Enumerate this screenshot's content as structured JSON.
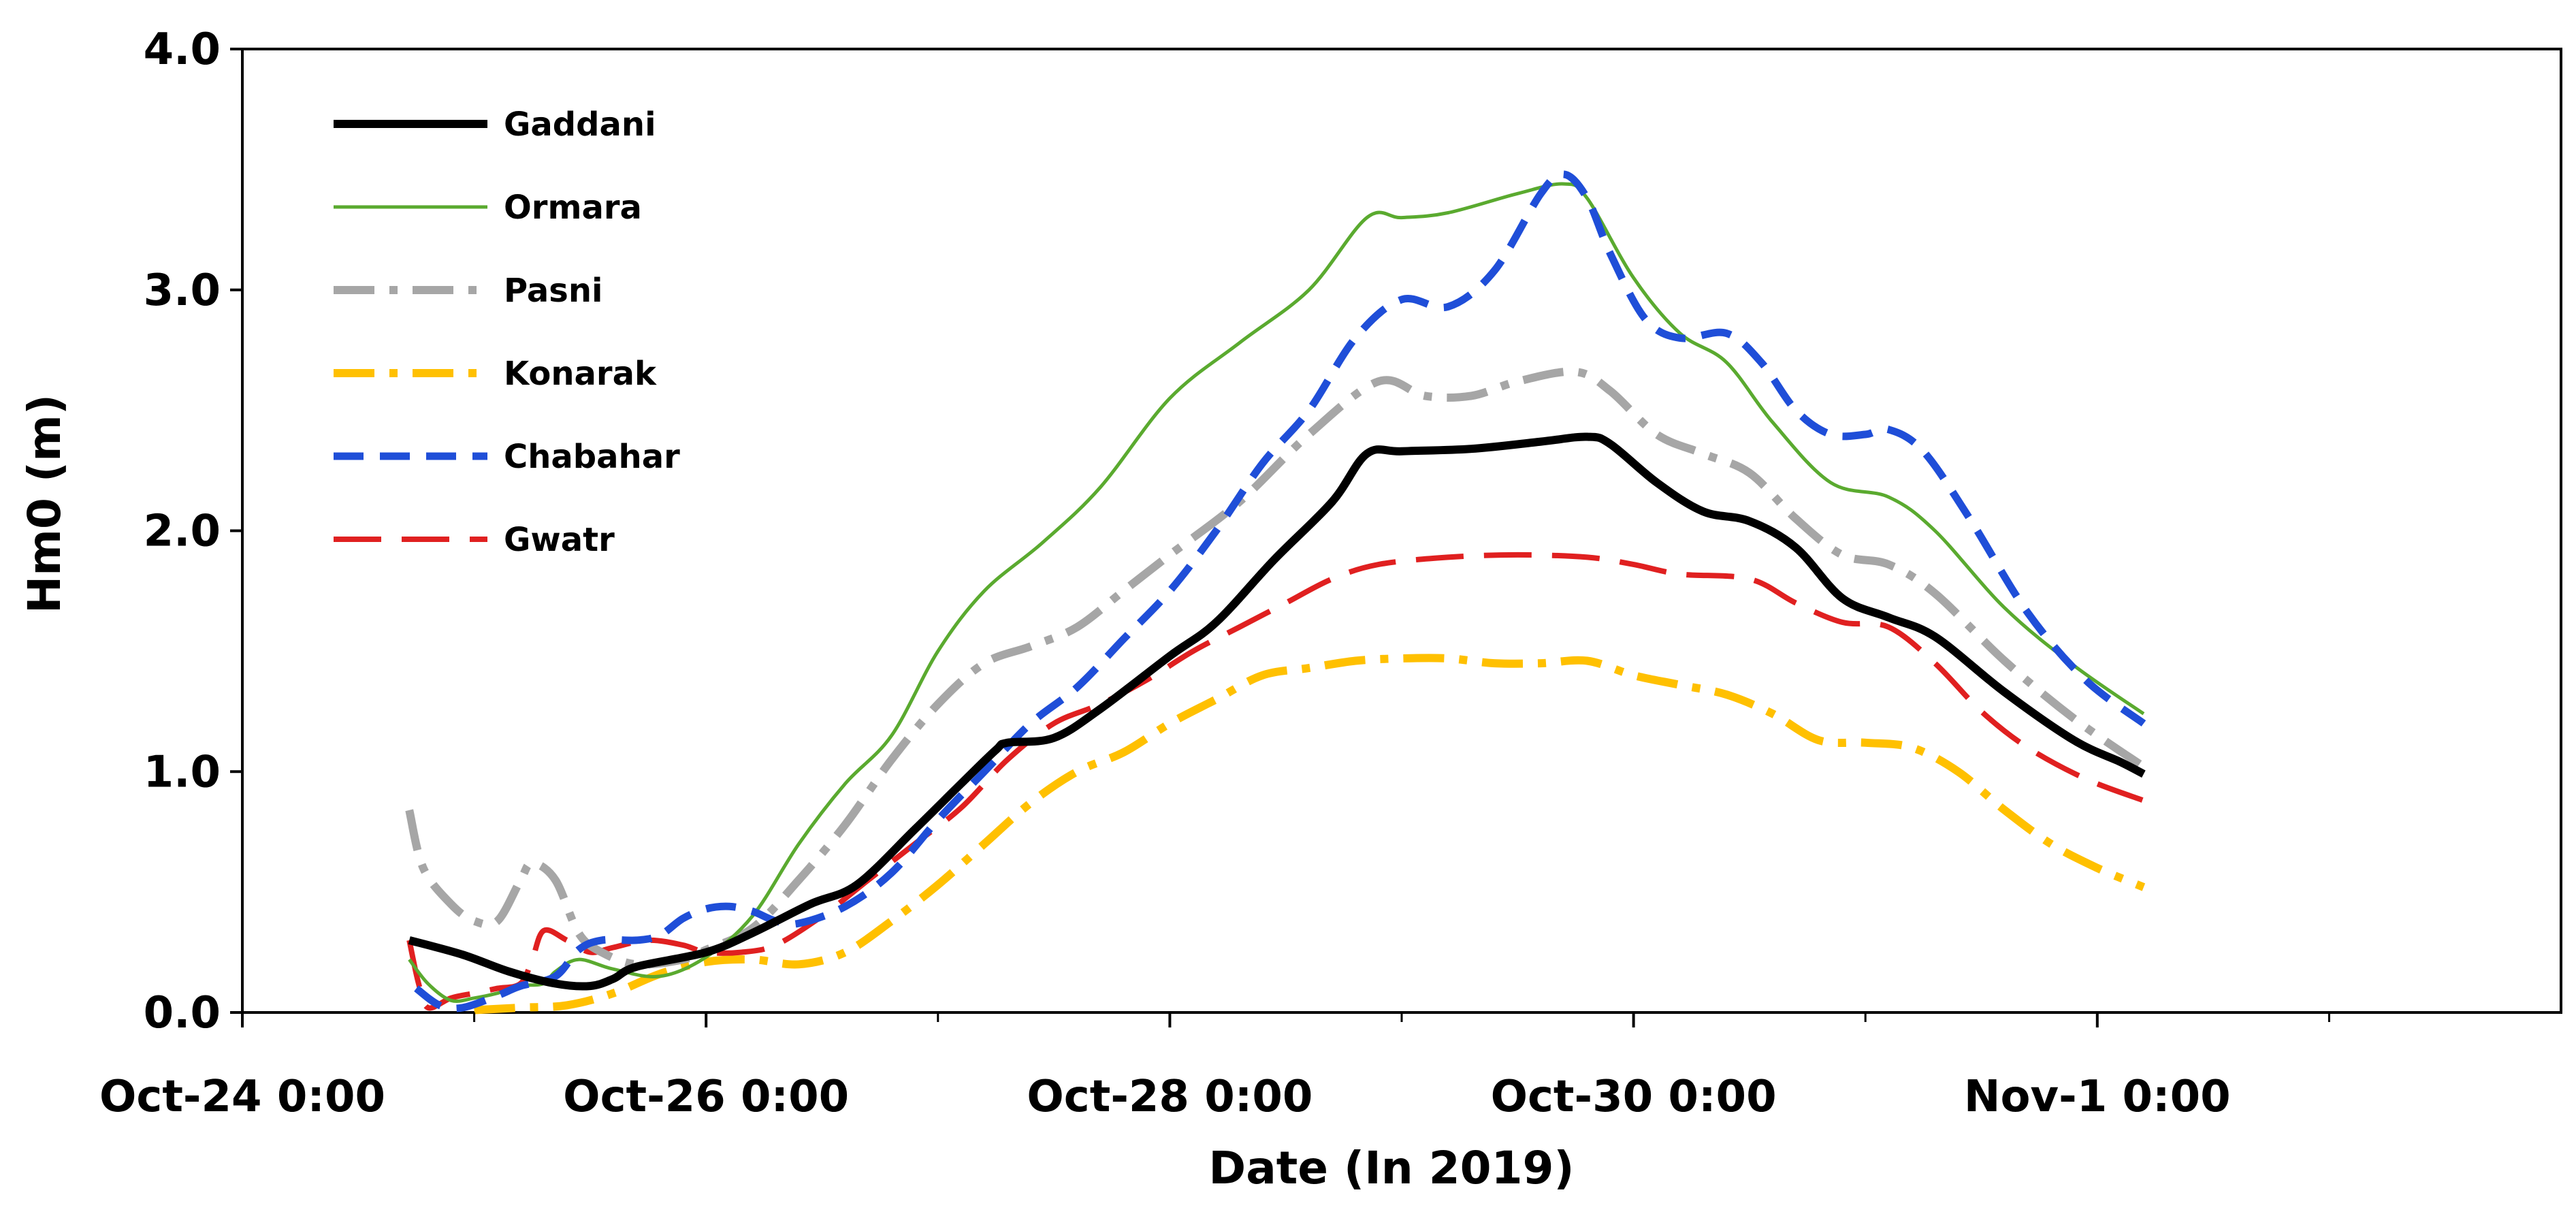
{
  "chart_data": {
    "type": "line",
    "title": "",
    "xlabel": "Date (In 2019)",
    "ylabel": "Hm0 (m)",
    "xlim": [
      0,
      10
    ],
    "ylim": [
      0,
      4
    ],
    "x_unit": "days since Oct-24 0:00",
    "x_ticks": [
      {
        "value": 0,
        "label": "Oct-24 0:00"
      },
      {
        "value": 2,
        "label": "Oct-26 0:00"
      },
      {
        "value": 4,
        "label": "Oct-28 0:00"
      },
      {
        "value": 6,
        "label": "Oct-30 0:00"
      },
      {
        "value": 8,
        "label": "Nov-1 0:00"
      }
    ],
    "y_ticks": [
      {
        "value": 0,
        "label": "0.0"
      },
      {
        "value": 1,
        "label": "1.0"
      },
      {
        "value": 2,
        "label": "2.0"
      },
      {
        "value": 3,
        "label": "3.0"
      },
      {
        "value": 4,
        "label": "4.0"
      }
    ],
    "grid": false,
    "legend_position": "top-left",
    "series": [
      {
        "name": "Gaddani",
        "color": "#000000",
        "style": "solid-thick",
        "points": [
          [
            0.72,
            0.3
          ],
          [
            0.95,
            0.24
          ],
          [
            1.15,
            0.17
          ],
          [
            1.35,
            0.12
          ],
          [
            1.5,
            0.11
          ],
          [
            1.6,
            0.14
          ],
          [
            1.7,
            0.19
          ],
          [
            2.0,
            0.25
          ],
          [
            2.2,
            0.33
          ],
          [
            2.45,
            0.45
          ],
          [
            2.65,
            0.53
          ],
          [
            2.9,
            0.76
          ],
          [
            3.1,
            0.95
          ],
          [
            3.25,
            1.09
          ],
          [
            3.3,
            1.12
          ],
          [
            3.5,
            1.14
          ],
          [
            3.7,
            1.26
          ],
          [
            4.0,
            1.48
          ],
          [
            4.2,
            1.62
          ],
          [
            4.45,
            1.88
          ],
          [
            4.7,
            2.12
          ],
          [
            4.85,
            2.32
          ],
          [
            5.0,
            2.33
          ],
          [
            5.3,
            2.34
          ],
          [
            5.6,
            2.37
          ],
          [
            5.8,
            2.39
          ],
          [
            5.9,
            2.36
          ],
          [
            6.1,
            2.2
          ],
          [
            6.3,
            2.08
          ],
          [
            6.5,
            2.04
          ],
          [
            6.7,
            1.93
          ],
          [
            6.9,
            1.72
          ],
          [
            7.1,
            1.64
          ],
          [
            7.3,
            1.56
          ],
          [
            7.6,
            1.33
          ],
          [
            7.9,
            1.13
          ],
          [
            8.1,
            1.04
          ],
          [
            8.2,
            0.99
          ]
        ]
      },
      {
        "name": "Ormara",
        "color": "#5aaa2f",
        "style": "solid-thin",
        "points": [
          [
            0.72,
            0.22
          ],
          [
            0.8,
            0.12
          ],
          [
            0.9,
            0.05
          ],
          [
            1.0,
            0.06
          ],
          [
            1.1,
            0.08
          ],
          [
            1.2,
            0.11
          ],
          [
            1.3,
            0.12
          ],
          [
            1.35,
            0.17
          ],
          [
            1.45,
            0.22
          ],
          [
            1.6,
            0.18
          ],
          [
            1.8,
            0.15
          ],
          [
            2.0,
            0.23
          ],
          [
            2.2,
            0.4
          ],
          [
            2.4,
            0.7
          ],
          [
            2.6,
            0.95
          ],
          [
            2.8,
            1.15
          ],
          [
            3.0,
            1.5
          ],
          [
            3.2,
            1.75
          ],
          [
            3.45,
            1.95
          ],
          [
            3.7,
            2.18
          ],
          [
            4.0,
            2.55
          ],
          [
            4.3,
            2.78
          ],
          [
            4.6,
            3.0
          ],
          [
            4.85,
            3.3
          ],
          [
            5.0,
            3.3
          ],
          [
            5.2,
            3.32
          ],
          [
            5.5,
            3.4
          ],
          [
            5.7,
            3.44
          ],
          [
            5.8,
            3.38
          ],
          [
            6.0,
            3.05
          ],
          [
            6.2,
            2.82
          ],
          [
            6.4,
            2.7
          ],
          [
            6.6,
            2.45
          ],
          [
            6.85,
            2.2
          ],
          [
            7.1,
            2.14
          ],
          [
            7.3,
            2.0
          ],
          [
            7.6,
            1.68
          ],
          [
            7.9,
            1.44
          ],
          [
            8.2,
            1.24
          ]
        ]
      },
      {
        "name": "Pasni",
        "color": "#a6a6a6",
        "style": "dash-dot",
        "points": [
          [
            0.72,
            0.84
          ],
          [
            0.78,
            0.6
          ],
          [
            0.9,
            0.45
          ],
          [
            1.0,
            0.38
          ],
          [
            1.1,
            0.38
          ],
          [
            1.2,
            0.55
          ],
          [
            1.25,
            0.62
          ],
          [
            1.35,
            0.55
          ],
          [
            1.45,
            0.33
          ],
          [
            1.55,
            0.25
          ],
          [
            1.7,
            0.2
          ],
          [
            1.9,
            0.22
          ],
          [
            2.0,
            0.26
          ],
          [
            2.2,
            0.35
          ],
          [
            2.4,
            0.55
          ],
          [
            2.6,
            0.78
          ],
          [
            2.8,
            1.05
          ],
          [
            3.0,
            1.28
          ],
          [
            3.2,
            1.45
          ],
          [
            3.4,
            1.52
          ],
          [
            3.6,
            1.6
          ],
          [
            3.8,
            1.75
          ],
          [
            4.0,
            1.9
          ],
          [
            4.3,
            2.12
          ],
          [
            4.6,
            2.4
          ],
          [
            4.9,
            2.62
          ],
          [
            5.1,
            2.56
          ],
          [
            5.3,
            2.56
          ],
          [
            5.5,
            2.62
          ],
          [
            5.75,
            2.66
          ],
          [
            5.9,
            2.58
          ],
          [
            6.1,
            2.4
          ],
          [
            6.3,
            2.32
          ],
          [
            6.5,
            2.24
          ],
          [
            6.7,
            2.05
          ],
          [
            6.9,
            1.9
          ],
          [
            7.1,
            1.86
          ],
          [
            7.3,
            1.74
          ],
          [
            7.6,
            1.46
          ],
          [
            7.9,
            1.22
          ],
          [
            8.2,
            1.02
          ]
        ]
      },
      {
        "name": "Konarak",
        "color": "#ffc000",
        "style": "dash-dot",
        "points": [
          [
            1.0,
            0.01
          ],
          [
            1.2,
            0.02
          ],
          [
            1.4,
            0.03
          ],
          [
            1.6,
            0.08
          ],
          [
            1.8,
            0.16
          ],
          [
            2.0,
            0.21
          ],
          [
            2.2,
            0.22
          ],
          [
            2.4,
            0.2
          ],
          [
            2.6,
            0.25
          ],
          [
            2.8,
            0.38
          ],
          [
            3.0,
            0.53
          ],
          [
            3.2,
            0.7
          ],
          [
            3.4,
            0.87
          ],
          [
            3.6,
            1.0
          ],
          [
            3.8,
            1.08
          ],
          [
            4.0,
            1.2
          ],
          [
            4.2,
            1.3
          ],
          [
            4.4,
            1.4
          ],
          [
            4.6,
            1.43
          ],
          [
            4.8,
            1.46
          ],
          [
            5.0,
            1.47
          ],
          [
            5.2,
            1.47
          ],
          [
            5.4,
            1.45
          ],
          [
            5.6,
            1.45
          ],
          [
            5.8,
            1.46
          ],
          [
            6.0,
            1.4
          ],
          [
            6.2,
            1.36
          ],
          [
            6.4,
            1.32
          ],
          [
            6.6,
            1.24
          ],
          [
            6.8,
            1.13
          ],
          [
            7.0,
            1.12
          ],
          [
            7.2,
            1.1
          ],
          [
            7.4,
            1.0
          ],
          [
            7.6,
            0.84
          ],
          [
            7.8,
            0.7
          ],
          [
            8.0,
            0.6
          ],
          [
            8.2,
            0.52
          ]
        ]
      },
      {
        "name": "Chabahar",
        "color": "#1f4ed8",
        "style": "dashed",
        "points": [
          [
            0.75,
            0.1
          ],
          [
            0.85,
            0.03
          ],
          [
            0.95,
            0.02
          ],
          [
            1.1,
            0.07
          ],
          [
            1.2,
            0.11
          ],
          [
            1.35,
            0.15
          ],
          [
            1.45,
            0.26
          ],
          [
            1.55,
            0.3
          ],
          [
            1.7,
            0.3
          ],
          [
            1.8,
            0.32
          ],
          [
            1.9,
            0.39
          ],
          [
            2.0,
            0.43
          ],
          [
            2.1,
            0.44
          ],
          [
            2.2,
            0.42
          ],
          [
            2.3,
            0.38
          ],
          [
            2.4,
            0.37
          ],
          [
            2.6,
            0.44
          ],
          [
            2.8,
            0.58
          ],
          [
            3.0,
            0.8
          ],
          [
            3.2,
            1.0
          ],
          [
            3.4,
            1.2
          ],
          [
            3.6,
            1.35
          ],
          [
            3.8,
            1.55
          ],
          [
            4.0,
            1.75
          ],
          [
            4.2,
            2.0
          ],
          [
            4.4,
            2.28
          ],
          [
            4.6,
            2.5
          ],
          [
            4.8,
            2.8
          ],
          [
            5.0,
            2.96
          ],
          [
            5.2,
            2.93
          ],
          [
            5.4,
            3.08
          ],
          [
            5.6,
            3.4
          ],
          [
            5.7,
            3.48
          ],
          [
            5.8,
            3.38
          ],
          [
            5.9,
            3.15
          ],
          [
            6.05,
            2.88
          ],
          [
            6.2,
            2.8
          ],
          [
            6.4,
            2.82
          ],
          [
            6.55,
            2.7
          ],
          [
            6.7,
            2.5
          ],
          [
            6.85,
            2.4
          ],
          [
            7.0,
            2.4
          ],
          [
            7.1,
            2.42
          ],
          [
            7.25,
            2.33
          ],
          [
            7.45,
            2.05
          ],
          [
            7.7,
            1.66
          ],
          [
            7.95,
            1.38
          ],
          [
            8.2,
            1.2
          ]
        ]
      },
      {
        "name": "Gwatr",
        "color": "#e02020",
        "style": "long-dash",
        "points": [
          [
            0.72,
            0.3
          ],
          [
            0.76,
            0.12
          ],
          [
            0.8,
            0.02
          ],
          [
            0.9,
            0.06
          ],
          [
            1.0,
            0.08
          ],
          [
            1.1,
            0.1
          ],
          [
            1.2,
            0.12
          ],
          [
            1.25,
            0.22
          ],
          [
            1.3,
            0.34
          ],
          [
            1.4,
            0.3
          ],
          [
            1.5,
            0.25
          ],
          [
            1.6,
            0.27
          ],
          [
            1.75,
            0.3
          ],
          [
            1.9,
            0.28
          ],
          [
            2.0,
            0.25
          ],
          [
            2.15,
            0.25
          ],
          [
            2.3,
            0.28
          ],
          [
            2.5,
            0.4
          ],
          [
            2.7,
            0.55
          ],
          [
            2.9,
            0.7
          ],
          [
            3.1,
            0.85
          ],
          [
            3.3,
            1.05
          ],
          [
            3.5,
            1.2
          ],
          [
            3.7,
            1.28
          ],
          [
            3.9,
            1.38
          ],
          [
            4.1,
            1.5
          ],
          [
            4.3,
            1.6
          ],
          [
            4.5,
            1.7
          ],
          [
            4.7,
            1.8
          ],
          [
            4.9,
            1.86
          ],
          [
            5.2,
            1.89
          ],
          [
            5.5,
            1.9
          ],
          [
            5.8,
            1.89
          ],
          [
            6.0,
            1.86
          ],
          [
            6.2,
            1.82
          ],
          [
            6.5,
            1.8
          ],
          [
            6.7,
            1.7
          ],
          [
            6.9,
            1.62
          ],
          [
            7.1,
            1.6
          ],
          [
            7.3,
            1.45
          ],
          [
            7.5,
            1.25
          ],
          [
            7.7,
            1.1
          ],
          [
            7.95,
            0.97
          ],
          [
            8.2,
            0.88
          ]
        ]
      }
    ]
  }
}
